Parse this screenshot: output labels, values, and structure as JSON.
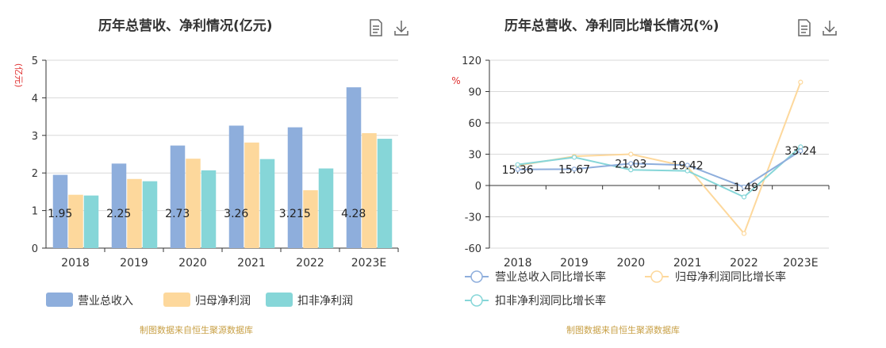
{
  "left": {
    "title": "历年总营收、净利情况(亿元)",
    "source": "制图数据来自恒生聚源数据库",
    "icons": [
      "document-icon",
      "download-icon"
    ]
  },
  "right": {
    "title": "历年总营收、净利同比增长情况(%)",
    "source": "制图数据来自恒生聚源数据库",
    "icons": [
      "document-icon",
      "download-icon"
    ]
  },
  "colors": {
    "revenue": "#8eaedc",
    "parent_profit": "#fdd89c",
    "deducted_profit": "#86d6d8",
    "unit_red": "#e03030",
    "source_gold": "#c8a046"
  },
  "chart_data": [
    {
      "type": "bar",
      "title": "历年总营收、净利情况(亿元)",
      "ylabel": "(亿元)",
      "ylim": [
        0,
        5
      ],
      "yticks": [
        0,
        1,
        2,
        3,
        4,
        5
      ],
      "categories": [
        "2018",
        "2019",
        "2020",
        "2021",
        "2022",
        "2023E"
      ],
      "grid": true,
      "legend_position": "bottom",
      "series": [
        {
          "name": "营业总收入",
          "values": [
            1.95,
            2.25,
            2.73,
            3.26,
            3.215,
            4.28
          ],
          "labels": [
            "1.95",
            "2.25",
            "2.73",
            "3.26",
            "3.215",
            "4.28"
          ]
        },
        {
          "name": "归母净利润",
          "values": [
            1.42,
            1.84,
            2.38,
            2.81,
            1.54,
            3.06
          ]
        },
        {
          "name": "扣非净利润",
          "values": [
            1.4,
            1.78,
            2.07,
            2.37,
            2.12,
            2.91
          ]
        }
      ]
    },
    {
      "type": "line",
      "title": "历年总营收、净利同比增长情况(%)",
      "ylabel": "%",
      "ylim": [
        -60,
        120
      ],
      "yticks": [
        -60,
        -30,
        0,
        30,
        60,
        90,
        120
      ],
      "categories": [
        "2018",
        "2019",
        "2020",
        "2021",
        "2022",
        "2023E"
      ],
      "grid": true,
      "legend_position": "bottom",
      "series": [
        {
          "name": "营业总收入同比增长率",
          "values": [
            15.36,
            15.67,
            21.03,
            19.42,
            -1.49,
            33.24
          ],
          "labels": [
            "15.36",
            "15.67",
            "21.03",
            "19.42",
            "-1.49",
            "33.24"
          ]
        },
        {
          "name": "归母净利润同比增长率",
          "values": [
            19.0,
            28.0,
            30.0,
            18.0,
            -46.0,
            99.0
          ]
        },
        {
          "name": "扣非净利润同比增长率",
          "values": [
            20.0,
            27.0,
            15.0,
            14.0,
            -11.0,
            37.0
          ]
        }
      ]
    }
  ]
}
